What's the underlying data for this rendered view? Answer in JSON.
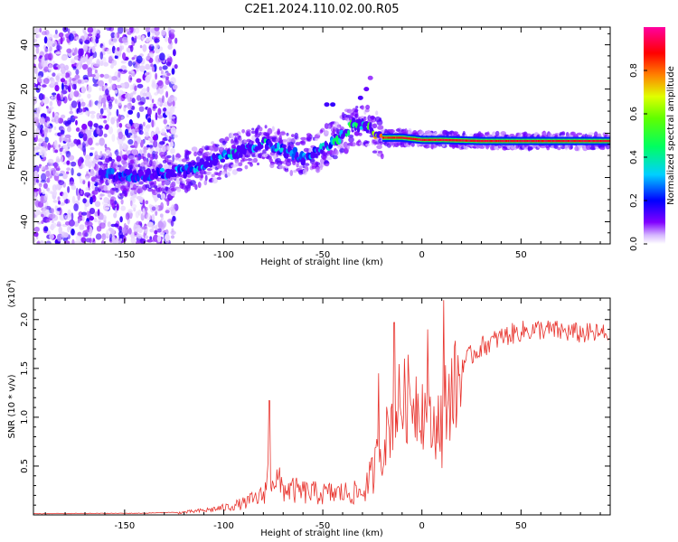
{
  "title": "C2E1.2024.110.02.00.R05",
  "colors": {
    "snr_line": "#e8342e",
    "scatter": "#8b2cf0",
    "colorbar_stops": [
      "#ffffff",
      "#d6b8ff",
      "#8000ff",
      "#0000ff",
      "#00d0ff",
      "#00ff40",
      "#c8ff00",
      "#ff8000",
      "#ff0000",
      "#ff00a0"
    ]
  },
  "chart_data": [
    {
      "type": "heatmap",
      "xlabel": "Height of straight line (km)",
      "ylabel": "Frequency (Hz)",
      "xlim": [
        -196,
        95
      ],
      "ylim": [
        -50,
        48
      ],
      "x_ticks": [
        -150,
        -100,
        -50,
        0,
        50
      ],
      "x_tick_labels": [
        "-150",
        "-100",
        "-50",
        "0",
        "50"
      ],
      "y_ticks": [
        -40,
        -20,
        0,
        20,
        40
      ],
      "y_tick_labels": [
        "-40",
        "-20",
        "0",
        "20",
        "40"
      ],
      "colorbar": {
        "label": "Normalized spectral amplitude",
        "range": [
          0,
          1
        ],
        "ticks": [
          0.0,
          0.2,
          0.4,
          0.6,
          0.8
        ],
        "tick_labels": [
          "0.0",
          "0.2",
          "0.4",
          "0.6",
          "0.8"
        ]
      },
      "ridge": {
        "x": [
          -160,
          -140,
          -120,
          -100,
          -80,
          -60,
          -50,
          -40,
          -35,
          -28,
          -20,
          -10,
          0,
          10,
          30,
          50,
          70,
          95
        ],
        "freq": [
          -19,
          -19,
          -17,
          -11,
          -4,
          -11,
          -7,
          -1,
          4,
          3,
          -2,
          -2,
          -3,
          -3,
          -3.5,
          -3.5,
          -3.5,
          -3.5
        ],
        "amplitude": [
          0.3,
          0.3,
          0.35,
          0.4,
          0.45,
          0.35,
          0.4,
          0.5,
          0.55,
          0.6,
          0.9,
          0.92,
          0.95,
          0.95,
          0.95,
          0.95,
          0.95,
          0.95
        ]
      },
      "noise_region_x": [
        -196,
        -130
      ]
    },
    {
      "type": "line",
      "xlabel": "Height of straight line (km)",
      "ylabel": "SNR (10 * v/v)",
      "scale_note": "(x10",
      "scale_exp": "4",
      "scale_close": ")",
      "xlim": [
        -196,
        95
      ],
      "ylim": [
        0,
        2.22
      ],
      "x_ticks": [
        -150,
        -100,
        -50,
        0,
        50
      ],
      "x_tick_labels": [
        "-150",
        "-100",
        "-50",
        "0",
        "50"
      ],
      "y_ticks": [
        0.5,
        1.0,
        1.5,
        2.0
      ],
      "y_tick_labels": [
        "0.5",
        "1.0",
        "1.5",
        "2.0"
      ],
      "envelope": {
        "x": [
          -196,
          -140,
          -125,
          -110,
          -100,
          -90,
          -80,
          -77,
          -70,
          -60,
          -50,
          -40,
          -30,
          -25,
          -18,
          -12,
          -5,
          0,
          5,
          10,
          12,
          20,
          30,
          40,
          50,
          60,
          70,
          80,
          95
        ],
        "snr": [
          0.005,
          0.01,
          0.02,
          0.05,
          0.08,
          0.13,
          0.22,
          0.5,
          0.3,
          0.26,
          0.24,
          0.25,
          0.25,
          0.45,
          0.9,
          1.25,
          1.35,
          1.25,
          0.95,
          1.15,
          1.3,
          1.55,
          1.72,
          1.82,
          1.88,
          1.9,
          1.88,
          1.86,
          1.85
        ]
      },
      "peaks": [
        {
          "x": -77,
          "snr": 1.17
        },
        {
          "x": -22,
          "snr": 1.45
        },
        {
          "x": -14,
          "snr": 1.97
        },
        {
          "x": 3,
          "snr": 1.9
        },
        {
          "x": 11,
          "snr": 2.2
        },
        {
          "x": 10,
          "snr": 0.48
        }
      ]
    }
  ]
}
